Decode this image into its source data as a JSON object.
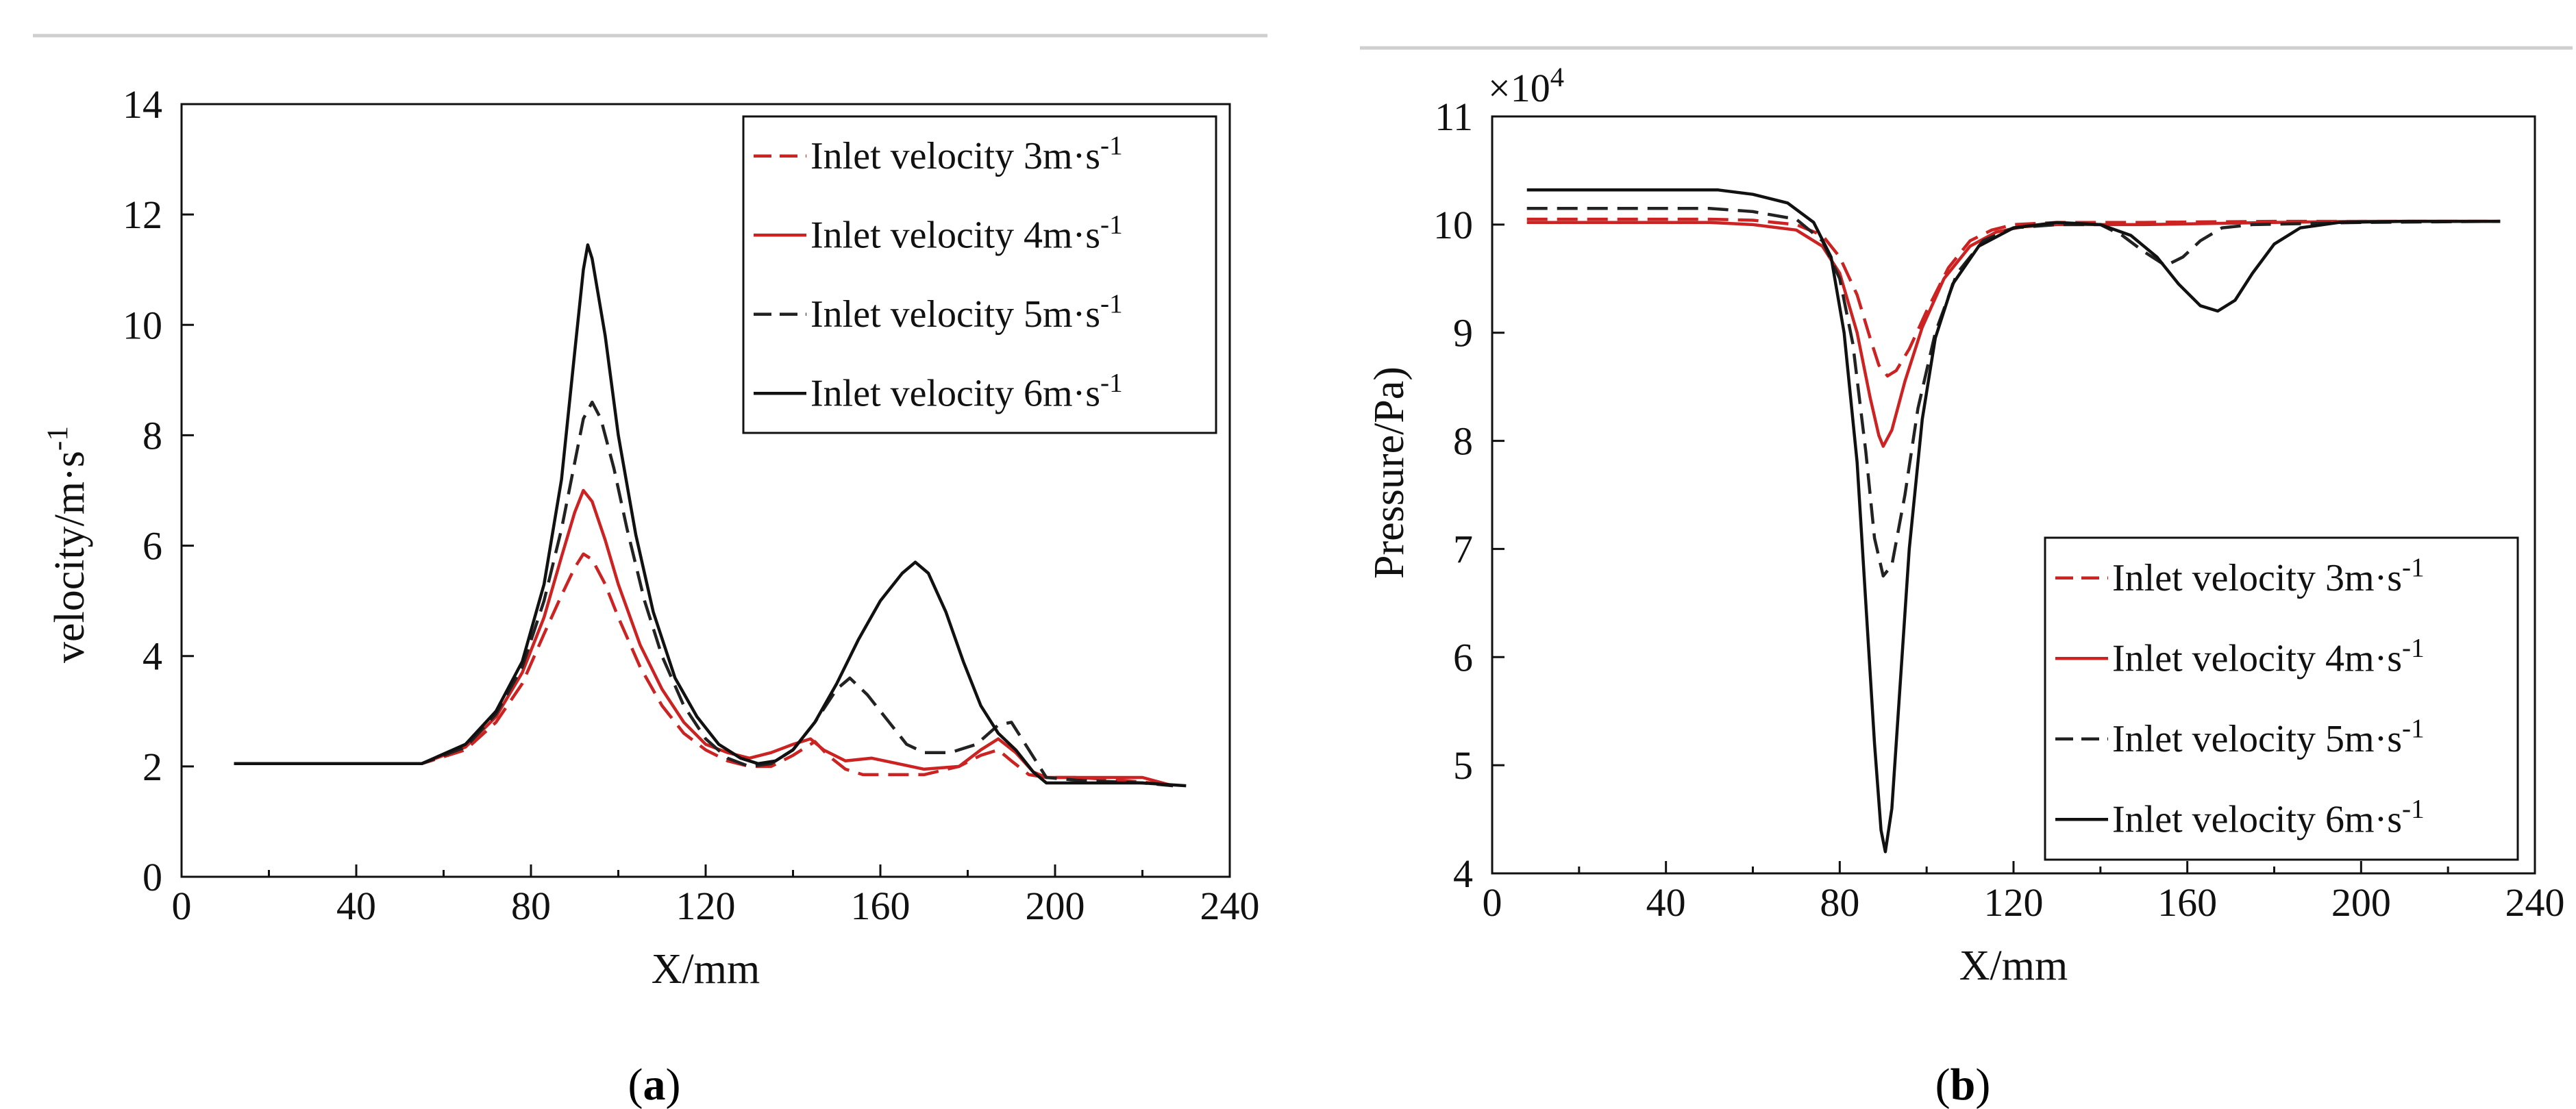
{
  "chart_data": [
    {
      "type": "line",
      "panel_label": "a",
      "xlabel": "X/mm",
      "ylabel": "velocity/m·s",
      "ylabel_sup": "-1",
      "xlim": [
        0,
        240
      ],
      "ylim": [
        0,
        14
      ],
      "xticks": [
        0,
        40,
        80,
        120,
        160,
        200,
        240
      ],
      "yticks": [
        0,
        2,
        4,
        6,
        8,
        10,
        12,
        14
      ],
      "grid": false,
      "legend_position": "top-right",
      "series": [
        {
          "name": "Inlet velocity 3m·s",
          "name_sup": "-1",
          "color": "#cc2222",
          "dash": "dashed",
          "points": [
            [
              12,
              2.05
            ],
            [
              40,
              2.05
            ],
            [
              55,
              2.05
            ],
            [
              65,
              2.3
            ],
            [
              72,
              2.8
            ],
            [
              78,
              3.5
            ],
            [
              83,
              4.4
            ],
            [
              87,
              5.1
            ],
            [
              90,
              5.6
            ],
            [
              92,
              5.85
            ],
            [
              94,
              5.75
            ],
            [
              97,
              5.3
            ],
            [
              100,
              4.7
            ],
            [
              105,
              3.8
            ],
            [
              110,
              3.1
            ],
            [
              115,
              2.6
            ],
            [
              120,
              2.3
            ],
            [
              125,
              2.1
            ],
            [
              130,
              2.0
            ],
            [
              135,
              2.0
            ],
            [
              140,
              2.2
            ],
            [
              145,
              2.45
            ],
            [
              148,
              2.2
            ],
            [
              152,
              1.95
            ],
            [
              156,
              1.85
            ],
            [
              162,
              1.85
            ],
            [
              170,
              1.85
            ],
            [
              178,
              2.0
            ],
            [
              183,
              2.2
            ],
            [
              187,
              2.3
            ],
            [
              190,
              2.1
            ],
            [
              194,
              1.85
            ],
            [
              198,
              1.8
            ],
            [
              205,
              1.8
            ],
            [
              215,
              1.75
            ],
            [
              222,
              1.7
            ],
            [
              227,
              1.65
            ]
          ]
        },
        {
          "name": "Inlet velocity 4m·s",
          "name_sup": "-1",
          "color": "#cc2222",
          "dash": "solid",
          "points": [
            [
              12,
              2.05
            ],
            [
              40,
              2.05
            ],
            [
              55,
              2.05
            ],
            [
              65,
              2.35
            ],
            [
              72,
              2.9
            ],
            [
              78,
              3.7
            ],
            [
              83,
              4.7
            ],
            [
              87,
              5.8
            ],
            [
              90,
              6.6
            ],
            [
              92,
              7.0
            ],
            [
              94,
              6.8
            ],
            [
              97,
              6.1
            ],
            [
              100,
              5.3
            ],
            [
              105,
              4.2
            ],
            [
              110,
              3.4
            ],
            [
              115,
              2.8
            ],
            [
              120,
              2.4
            ],
            [
              125,
              2.25
            ],
            [
              130,
              2.15
            ],
            [
              135,
              2.25
            ],
            [
              140,
              2.4
            ],
            [
              144,
              2.5
            ],
            [
              147,
              2.3
            ],
            [
              152,
              2.1
            ],
            [
              158,
              2.15
            ],
            [
              164,
              2.05
            ],
            [
              170,
              1.95
            ],
            [
              178,
              2.0
            ],
            [
              183,
              2.3
            ],
            [
              187,
              2.5
            ],
            [
              191,
              2.25
            ],
            [
              195,
              1.9
            ],
            [
              198,
              1.8
            ],
            [
              205,
              1.8
            ],
            [
              215,
              1.8
            ],
            [
              220,
              1.8
            ],
            [
              227,
              1.65
            ]
          ]
        },
        {
          "name": "Inlet velocity 5m·s",
          "name_sup": "-1",
          "color": "#222222",
          "dash": "dashed",
          "points": [
            [
              12,
              2.05
            ],
            [
              40,
              2.05
            ],
            [
              55,
              2.05
            ],
            [
              65,
              2.35
            ],
            [
              72,
              2.95
            ],
            [
              78,
              3.8
            ],
            [
              83,
              5.0
            ],
            [
              87,
              6.3
            ],
            [
              90,
              7.5
            ],
            [
              92,
              8.3
            ],
            [
              94,
              8.6
            ],
            [
              96,
              8.3
            ],
            [
              99,
              7.4
            ],
            [
              102,
              6.3
            ],
            [
              106,
              5.0
            ],
            [
              110,
              4.0
            ],
            [
              115,
              3.1
            ],
            [
              120,
              2.5
            ],
            [
              125,
              2.15
            ],
            [
              130,
              2.0
            ],
            [
              135,
              2.05
            ],
            [
              140,
              2.3
            ],
            [
              145,
              2.8
            ],
            [
              150,
              3.4
            ],
            [
              153,
              3.6
            ],
            [
              157,
              3.3
            ],
            [
              162,
              2.8
            ],
            [
              166,
              2.4
            ],
            [
              170,
              2.25
            ],
            [
              176,
              2.25
            ],
            [
              182,
              2.4
            ],
            [
              187,
              2.75
            ],
            [
              190,
              2.8
            ],
            [
              194,
              2.3
            ],
            [
              198,
              1.8
            ],
            [
              205,
              1.75
            ],
            [
              220,
              1.7
            ],
            [
              227,
              1.65
            ]
          ]
        },
        {
          "name": "Inlet velocity 6m·s",
          "name_sup": "-1",
          "color": "#111111",
          "dash": "solid",
          "points": [
            [
              12,
              2.05
            ],
            [
              40,
              2.05
            ],
            [
              55,
              2.05
            ],
            [
              65,
              2.4
            ],
            [
              72,
              3.0
            ],
            [
              78,
              3.9
            ],
            [
              83,
              5.3
            ],
            [
              87,
              7.2
            ],
            [
              90,
              9.5
            ],
            [
              92,
              11.0
            ],
            [
              93,
              11.45
            ],
            [
              94,
              11.2
            ],
            [
              97,
              9.8
            ],
            [
              100,
              8.0
            ],
            [
              104,
              6.2
            ],
            [
              108,
              4.8
            ],
            [
              113,
              3.6
            ],
            [
              118,
              2.9
            ],
            [
              123,
              2.4
            ],
            [
              128,
              2.15
            ],
            [
              132,
              2.05
            ],
            [
              136,
              2.1
            ],
            [
              140,
              2.3
            ],
            [
              145,
              2.8
            ],
            [
              150,
              3.5
            ],
            [
              155,
              4.3
            ],
            [
              160,
              5.0
            ],
            [
              165,
              5.5
            ],
            [
              168,
              5.7
            ],
            [
              171,
              5.5
            ],
            [
              175,
              4.8
            ],
            [
              179,
              3.9
            ],
            [
              183,
              3.1
            ],
            [
              187,
              2.6
            ],
            [
              191,
              2.3
            ],
            [
              195,
              1.9
            ],
            [
              198,
              1.7
            ],
            [
              205,
              1.7
            ],
            [
              220,
              1.7
            ],
            [
              230,
              1.65
            ]
          ]
        }
      ]
    },
    {
      "type": "line",
      "panel_label": "b",
      "xlabel": "X/mm",
      "ylabel": "Pressure/Pa)",
      "y_multiplier": "×10",
      "y_multiplier_sup": "4",
      "xlim": [
        0,
        240
      ],
      "ylim": [
        4,
        11
      ],
      "xticks": [
        0,
        40,
        80,
        120,
        160,
        200,
        240
      ],
      "yticks": [
        4,
        5,
        6,
        7,
        8,
        9,
        10,
        11
      ],
      "grid": false,
      "legend_position": "bottom-right",
      "series": [
        {
          "name": "Inlet velocity 3m·s",
          "name_sup": "-1",
          "color": "#cc2222",
          "dash": "dashed",
          "points": [
            [
              8,
              10.05
            ],
            [
              50,
              10.05
            ],
            [
              60,
              10.04
            ],
            [
              70,
              10.0
            ],
            [
              76,
              9.9
            ],
            [
              80,
              9.7
            ],
            [
              84,
              9.35
            ],
            [
              87,
              8.95
            ],
            [
              89,
              8.7
            ],
            [
              91,
              8.6
            ],
            [
              93,
              8.65
            ],
            [
              96,
              8.85
            ],
            [
              100,
              9.2
            ],
            [
              105,
              9.6
            ],
            [
              110,
              9.85
            ],
            [
              115,
              9.95
            ],
            [
              120,
              10.0
            ],
            [
              130,
              10.02
            ],
            [
              150,
              10.02
            ],
            [
              180,
              10.03
            ],
            [
              200,
              10.03
            ],
            [
              232,
              10.03
            ]
          ]
        },
        {
          "name": "Inlet velocity 4m·s",
          "name_sup": "-1",
          "color": "#cc2222",
          "dash": "solid",
          "points": [
            [
              8,
              10.02
            ],
            [
              50,
              10.02
            ],
            [
              60,
              10.0
            ],
            [
              70,
              9.95
            ],
            [
              76,
              9.8
            ],
            [
              80,
              9.55
            ],
            [
              84,
              9.0
            ],
            [
              87,
              8.4
            ],
            [
              89,
              8.05
            ],
            [
              90,
              7.95
            ],
            [
              92,
              8.1
            ],
            [
              95,
              8.55
            ],
            [
              99,
              9.05
            ],
            [
              104,
              9.5
            ],
            [
              110,
              9.8
            ],
            [
              116,
              9.93
            ],
            [
              122,
              9.98
            ],
            [
              130,
              10.0
            ],
            [
              150,
              10.0
            ],
            [
              180,
              10.02
            ],
            [
              200,
              10.03
            ],
            [
              232,
              10.03
            ]
          ]
        },
        {
          "name": "Inlet velocity 5m·s",
          "name_sup": "-1",
          "color": "#222222",
          "dash": "dashed",
          "points": [
            [
              8,
              10.15
            ],
            [
              50,
              10.15
            ],
            [
              60,
              10.12
            ],
            [
              70,
              10.05
            ],
            [
              76,
              9.85
            ],
            [
              80,
              9.5
            ],
            [
              83,
              8.9
            ],
            [
              86,
              7.9
            ],
            [
              88,
              7.1
            ],
            [
              90,
              6.75
            ],
            [
              92,
              6.85
            ],
            [
              95,
              7.5
            ],
            [
              98,
              8.3
            ],
            [
              102,
              9.0
            ],
            [
              107,
              9.55
            ],
            [
              113,
              9.85
            ],
            [
              120,
              9.97
            ],
            [
              130,
              10.0
            ],
            [
              140,
              10.0
            ],
            [
              145,
              9.9
            ],
            [
              150,
              9.75
            ],
            [
              155,
              9.62
            ],
            [
              159,
              9.7
            ],
            [
              163,
              9.85
            ],
            [
              168,
              9.97
            ],
            [
              175,
              10.0
            ],
            [
              200,
              10.02
            ],
            [
              232,
              10.03
            ]
          ]
        },
        {
          "name": "Inlet velocity 6m·s",
          "name_sup": "-1",
          "color": "#111111",
          "dash": "solid",
          "points": [
            [
              8,
              10.32
            ],
            [
              52,
              10.32
            ],
            [
              60,
              10.28
            ],
            [
              68,
              10.2
            ],
            [
              74,
              10.02
            ],
            [
              78,
              9.7
            ],
            [
              81,
              9.0
            ],
            [
              84,
              7.8
            ],
            [
              86,
              6.5
            ],
            [
              88,
              5.2
            ],
            [
              89.5,
              4.4
            ],
            [
              90.5,
              4.2
            ],
            [
              92,
              4.6
            ],
            [
              94,
              5.8
            ],
            [
              96,
              7.0
            ],
            [
              99,
              8.2
            ],
            [
              102,
              8.95
            ],
            [
              106,
              9.45
            ],
            [
              112,
              9.8
            ],
            [
              120,
              9.97
            ],
            [
              130,
              10.02
            ],
            [
              140,
              10.0
            ],
            [
              147,
              9.9
            ],
            [
              153,
              9.7
            ],
            [
              158,
              9.45
            ],
            [
              163,
              9.25
            ],
            [
              167,
              9.2
            ],
            [
              171,
              9.3
            ],
            [
              175,
              9.55
            ],
            [
              180,
              9.82
            ],
            [
              186,
              9.97
            ],
            [
              195,
              10.02
            ],
            [
              210,
              10.03
            ],
            [
              232,
              10.03
            ]
          ]
        }
      ]
    }
  ]
}
